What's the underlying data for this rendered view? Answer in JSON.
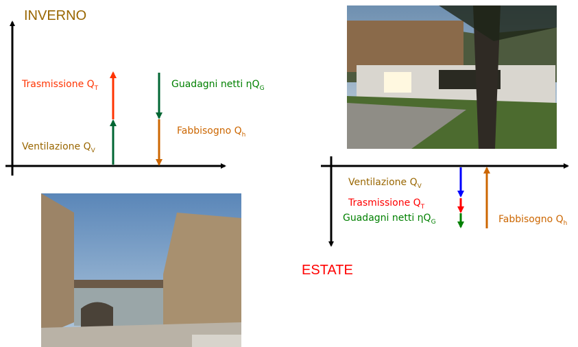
{
  "winter": {
    "title": "INVERNO",
    "labels": [
      {
        "text": "Trasmissione Q",
        "sub": "T"
      },
      {
        "text": "Ventilazione Q",
        "sub": "V"
      },
      {
        "text": "Guadagni netti ηQ",
        "sub": "G"
      },
      {
        "text": "Fabbisogno Q",
        "sub": "h"
      }
    ]
  },
  "summer": {
    "title": "ESTATE",
    "labels": [
      {
        "text": "Ventilazione Q",
        "sub": "V"
      },
      {
        "text": "Trasmissione Q",
        "sub": "T"
      },
      {
        "text": "Guadagni netti ηQ",
        "sub": "G"
      },
      {
        "text": "Fabbisogno Q",
        "sub": "h"
      }
    ]
  }
}
